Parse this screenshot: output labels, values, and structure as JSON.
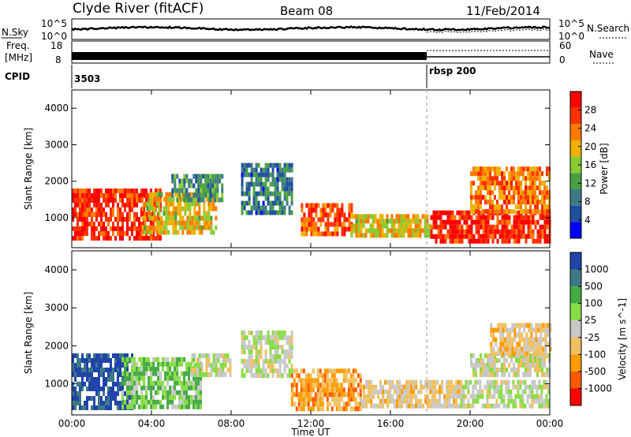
{
  "header": {
    "station": "Clyde River (fitACF)",
    "beam": "Beam 08",
    "date": "11/Feb/2014"
  },
  "nsky_panel": {
    "left_label": "N.Sky",
    "left_ticks": [
      "10^5",
      "10^0"
    ],
    "right_label": "N.Search",
    "right_ticks": [
      "10^5",
      "10^0"
    ]
  },
  "freq_panel": {
    "left_label_line1": "Freq.",
    "left_label_line2": "[MHz]",
    "left_ticks": [
      "18",
      "8"
    ],
    "right_label": "Nave",
    "right_ticks": [
      "60",
      "0"
    ]
  },
  "cpid_panel": {
    "label": "CPID",
    "programs": [
      {
        "id": "3503",
        "start_hour": 0
      },
      {
        "id": "rbsp 200",
        "start_hour": 18
      }
    ]
  },
  "colors": {
    "power_scale": [
      "#0000ff",
      "#1e4fa0",
      "#3c7a86",
      "#4aa040",
      "#88cc33",
      "#f0b000",
      "#ff7a00",
      "#ff3300",
      "#ff0000"
    ],
    "velocity_scale": [
      "#ff0000",
      "#ff5a00",
      "#ff9a00",
      "#f0c060",
      "#c8c8c8",
      "#88dd44",
      "#44aa44",
      "#3c7a86",
      "#2244aa"
    ]
  },
  "chart_data": [
    {
      "type": "heatmap",
      "title": "",
      "xlabel": "Time UT",
      "ylabel": "Slant Range [km]",
      "x_ticks": [
        "00:00",
        "04:00",
        "08:00",
        "12:00",
        "16:00",
        "20:00",
        "00:00"
      ],
      "xlim_hours": [
        0,
        24
      ],
      "y_ticks": [
        "1000",
        "2000",
        "3000",
        "4000"
      ],
      "ylim_km": [
        180,
        4500
      ],
      "grid": false,
      "colorbar": {
        "label": "Power [dB]",
        "ticks": [
          "28",
          "24",
          "20",
          "16",
          "12",
          "8",
          "4"
        ],
        "range": [
          0,
          30
        ]
      },
      "echo_regions": [
        {
          "t0": 0,
          "t1": 4.5,
          "r0": 400,
          "r1": 1800,
          "value": 26
        },
        {
          "t0": 3.5,
          "t1": 7.2,
          "r0": 600,
          "r1": 1700,
          "value": 18
        },
        {
          "t0": 5.0,
          "t1": 7.5,
          "r0": 1500,
          "r1": 2200,
          "value": 10
        },
        {
          "t0": 8.5,
          "t1": 11.0,
          "r0": 1200,
          "r1": 2500,
          "value": 8
        },
        {
          "t0": 11.5,
          "t1": 14.0,
          "r0": 600,
          "r1": 1400,
          "value": 24
        },
        {
          "t0": 14.0,
          "t1": 18.0,
          "r0": 500,
          "r1": 1100,
          "value": 18
        },
        {
          "t0": 18.0,
          "t1": 24.0,
          "r0": 300,
          "r1": 1200,
          "value": 27
        },
        {
          "t0": 20.0,
          "t1": 24.0,
          "r0": 1200,
          "r1": 2400,
          "value": 22
        }
      ]
    },
    {
      "type": "heatmap",
      "title": "",
      "xlabel": "Time UT",
      "ylabel": "Slant Range [km]",
      "x_ticks": [
        "00:00",
        "04:00",
        "08:00",
        "12:00",
        "16:00",
        "20:00",
        "00:00"
      ],
      "xlim_hours": [
        0,
        24
      ],
      "y_ticks": [
        "1000",
        "2000",
        "3000",
        "4000"
      ],
      "ylim_km": [
        180,
        4500
      ],
      "grid": false,
      "colorbar": {
        "label": "Velocity [m s^-1]",
        "ticks": [
          "1000",
          "500",
          "100",
          "25",
          "-25",
          "-100",
          "-500",
          "-1000"
        ],
        "range": [
          -1000,
          1000
        ]
      },
      "echo_regions": [
        {
          "t0": 0,
          "t1": 3.0,
          "r0": 400,
          "r1": 1800,
          "value": 900
        },
        {
          "t0": 2.5,
          "t1": 6.5,
          "r0": 400,
          "r1": 1700,
          "value": 300
        },
        {
          "t0": 6.0,
          "t1": 8.0,
          "r0": 1200,
          "r1": 1800,
          "value": 60
        },
        {
          "t0": 8.5,
          "t1": 11.0,
          "r0": 1200,
          "r1": 2400,
          "value": 40
        },
        {
          "t0": 11.0,
          "t1": 14.5,
          "r0": 400,
          "r1": 1400,
          "value": -400
        },
        {
          "t0": 14.5,
          "t1": 19.5,
          "r0": 400,
          "r1": 1100,
          "value": -150
        },
        {
          "t0": 19.5,
          "t1": 24.0,
          "r0": 400,
          "r1": 1100,
          "value": 80
        },
        {
          "t0": 20.0,
          "t1": 24.0,
          "r0": 1200,
          "r1": 1800,
          "value": 0
        },
        {
          "t0": 21.0,
          "t1": 24.0,
          "r0": 1800,
          "r1": 2600,
          "value": -200
        }
      ]
    }
  ]
}
